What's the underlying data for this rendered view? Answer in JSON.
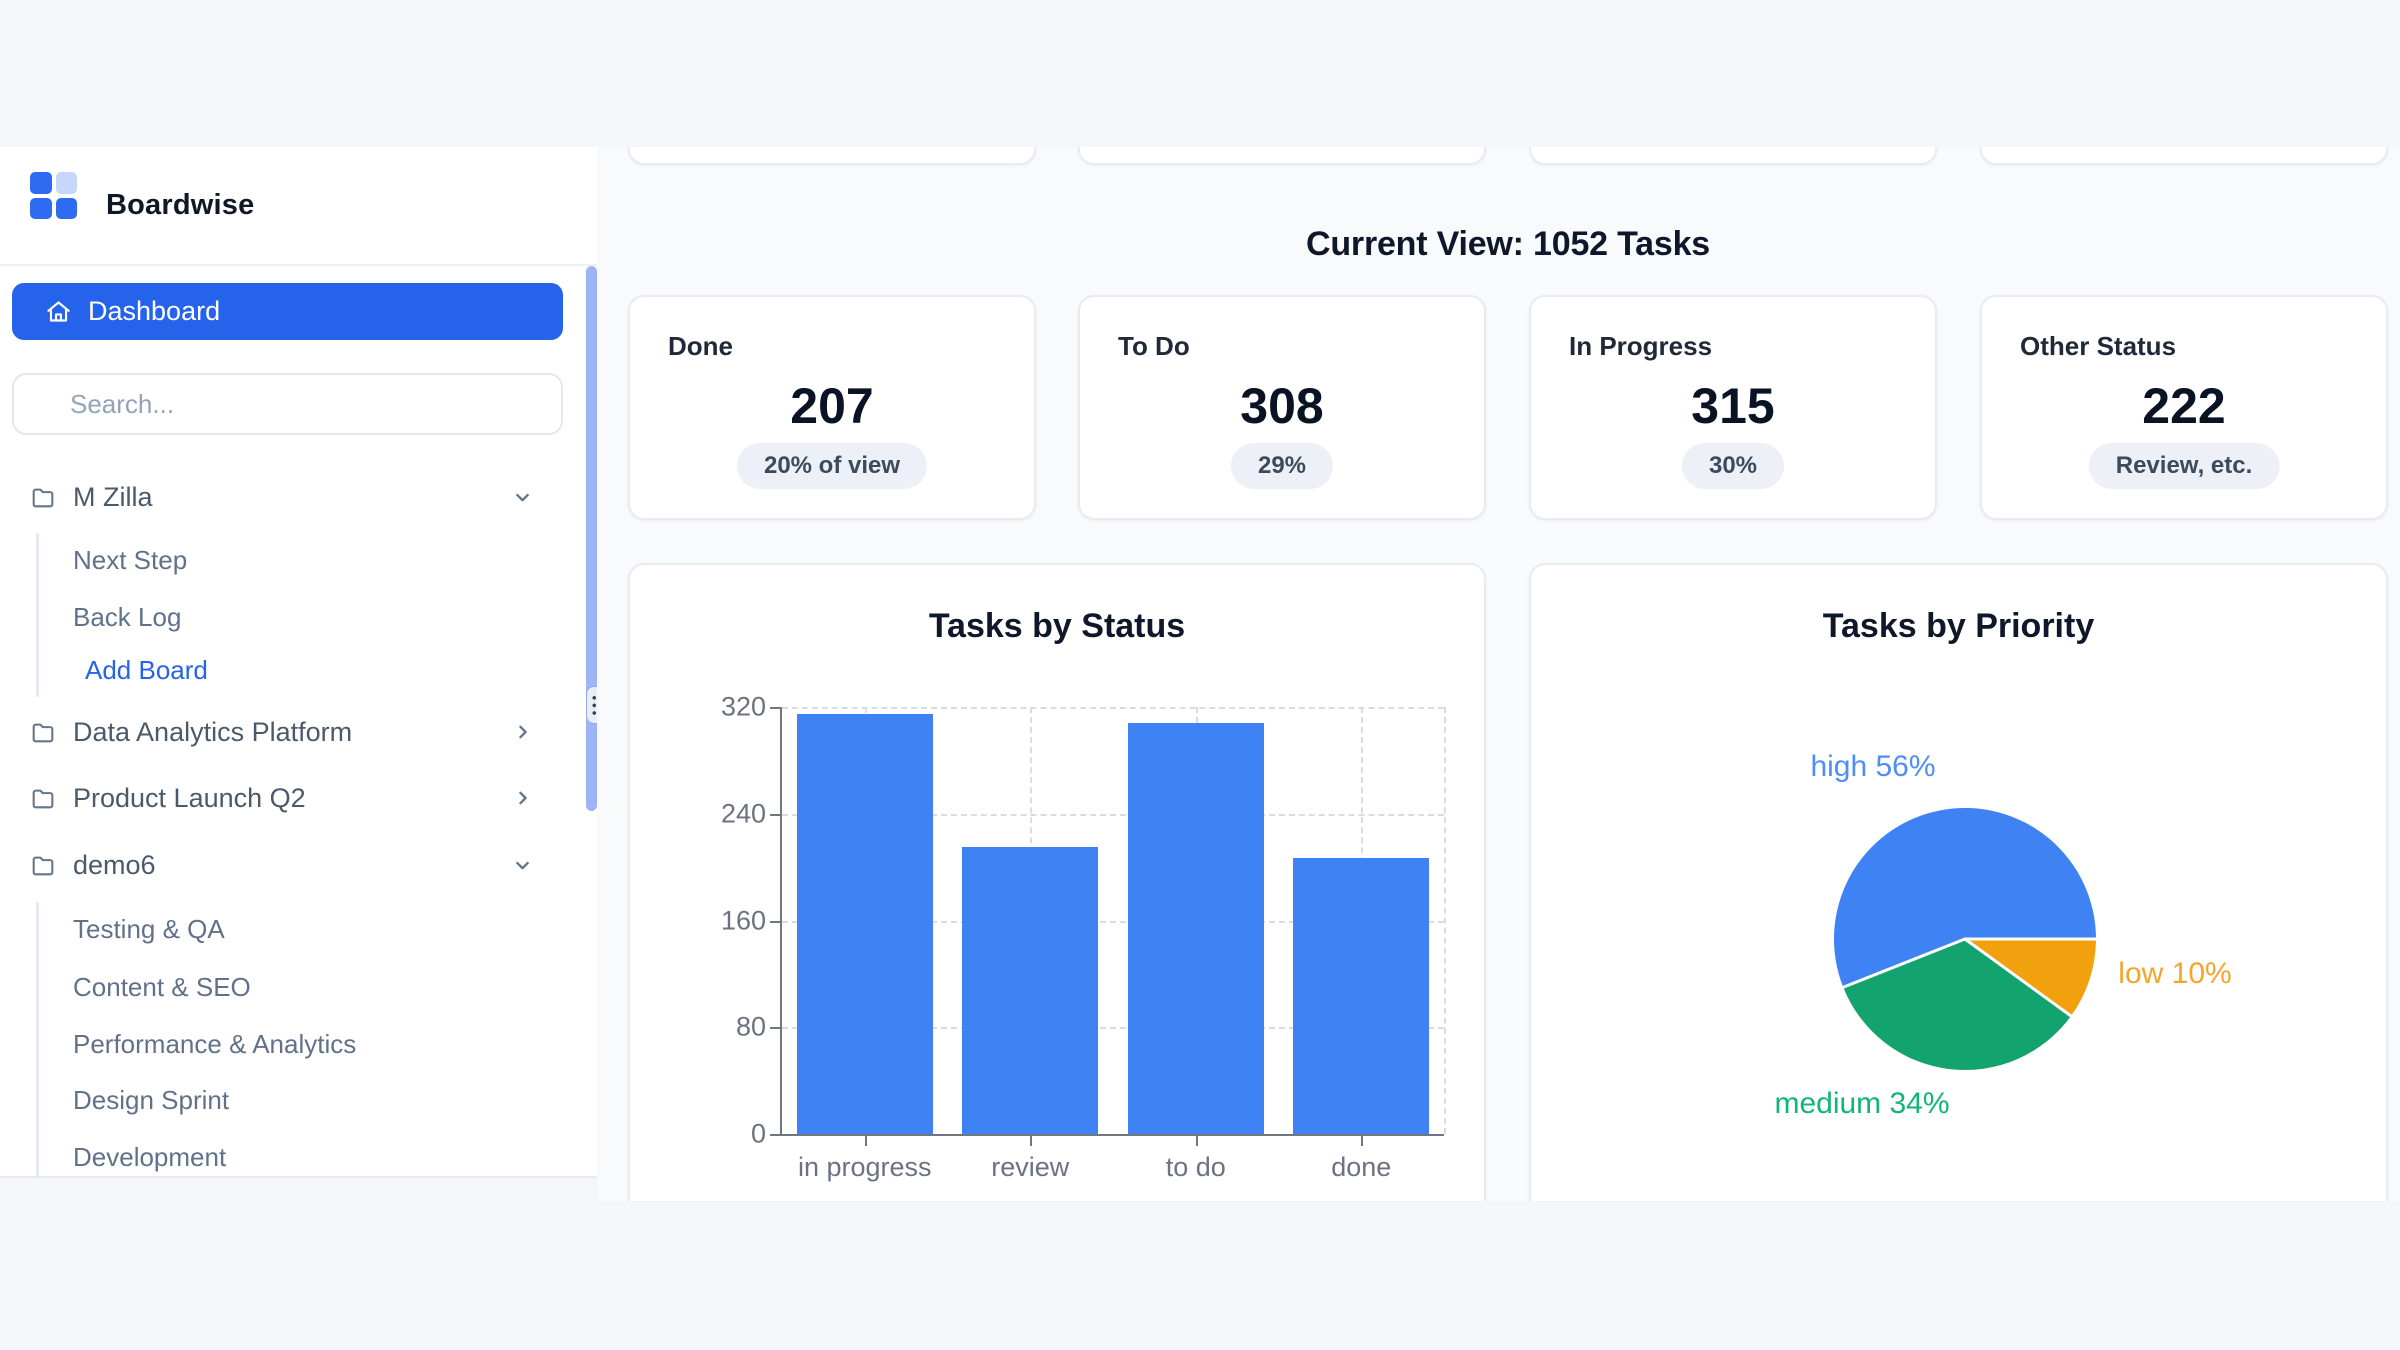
{
  "app": {
    "brand": "Boardwise"
  },
  "sidebar": {
    "dashboard_label": "Dashboard",
    "search_placeholder": "Search...",
    "tree": [
      {
        "label": "M Zilla",
        "state": "expanded",
        "children": [
          "Next Step",
          "Back Log"
        ],
        "action_label": "Add Board"
      },
      {
        "label": "Data Analytics Platform",
        "state": "collapsed"
      },
      {
        "label": "Product Launch Q2",
        "state": "collapsed"
      },
      {
        "label": "demo6",
        "state": "expanded",
        "children": [
          "Testing & QA",
          "Content & SEO",
          "Performance & Analytics",
          "Design Sprint",
          "Development"
        ]
      }
    ]
  },
  "header": {
    "title": "Current View: 1052 Tasks"
  },
  "stats": [
    {
      "label": "Done",
      "value": "207",
      "badge": "20% of view"
    },
    {
      "label": "To Do",
      "value": "308",
      "badge": "29%"
    },
    {
      "label": "In Progress",
      "value": "315",
      "badge": "30%"
    },
    {
      "label": "Other Status",
      "value": "222",
      "badge": "Review, etc."
    }
  ],
  "chart_data": [
    {
      "type": "bar",
      "title": "Tasks by Status",
      "categories": [
        "in progress",
        "review",
        "to do",
        "done"
      ],
      "values": [
        315,
        215,
        308,
        207
      ],
      "xlabel": "",
      "ylabel": "",
      "ylim": [
        0,
        320
      ],
      "yticks": [
        0,
        80,
        160,
        240,
        320
      ],
      "grid": "dashed",
      "bar_color": "#3e82f4",
      "axis_color": "#707781",
      "tick_label_color": "#6b7280"
    },
    {
      "type": "pie",
      "title": "Tasks by Priority",
      "start_angle_deg": 90,
      "direction": "clockwise",
      "order_from_start": [
        "low",
        "medium",
        "high"
      ],
      "slices": [
        {
          "label": "high",
          "pct": 56,
          "label_text": "high 56%",
          "color": "#3e82f4",
          "label_color": "#4e8ef7"
        },
        {
          "label": "medium",
          "pct": 34,
          "label_text": "medium 34%",
          "color": "#12a36e",
          "label_color": "#12b576"
        },
        {
          "label": "low",
          "pct": 10,
          "label_text": "low 10%",
          "color": "#f0a10d",
          "label_color": "#f6a42a"
        }
      ]
    }
  ],
  "colors": {
    "accent_blue": "#2563eb",
    "logo_blue": "#2f6bf0",
    "logo_light_blue": "#c7d7fb",
    "bar_blue": "#3e82f4",
    "pie_green": "#12a36e",
    "pie_orange": "#f0a10d",
    "pill_bg": "#edf1f7",
    "scrollbar_thumb": "#9db4f7",
    "page_bg": "#f4f6f9",
    "main_bg": "#f8fafc",
    "heading_text": "#0f172a"
  }
}
